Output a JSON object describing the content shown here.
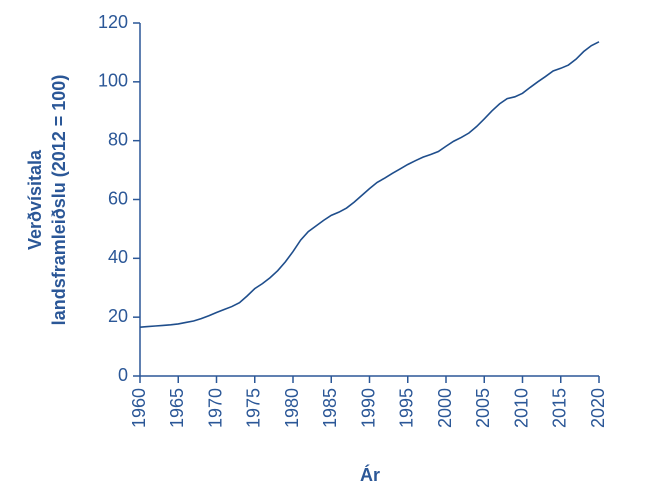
{
  "chart_data": {
    "type": "line",
    "ylabel": [
      "Verðvísitala",
      "landsframleiðslu (2012 = 100)"
    ],
    "xlabel": "Ár",
    "color": "#1f4e8c",
    "x": [
      1960,
      1961,
      1962,
      1963,
      1964,
      1965,
      1966,
      1967,
      1968,
      1969,
      1970,
      1971,
      1972,
      1973,
      1974,
      1975,
      1976,
      1977,
      1978,
      1979,
      1980,
      1981,
      1982,
      1983,
      1984,
      1985,
      1986,
      1987,
      1988,
      1989,
      1990,
      1991,
      1992,
      1993,
      1994,
      1995,
      1996,
      1997,
      1998,
      1999,
      2000,
      2001,
      2002,
      2003,
      2004,
      2005,
      2006,
      2007,
      2008,
      2009,
      2010,
      2011,
      2012,
      2013,
      2014,
      2015,
      2016,
      2017,
      2018,
      2019,
      2020
    ],
    "values": [
      16.6,
      16.8,
      17.0,
      17.2,
      17.4,
      17.7,
      18.2,
      18.7,
      19.5,
      20.5,
      21.6,
      22.6,
      23.6,
      24.9,
      27.2,
      29.7,
      31.4,
      33.4,
      35.8,
      38.8,
      42.3,
      46.2,
      49.1,
      51.0,
      52.9,
      54.6,
      55.7,
      57.1,
      59.1,
      61.4,
      63.7,
      65.8,
      67.3,
      68.9,
      70.4,
      71.9,
      73.2,
      74.4,
      75.3,
      76.3,
      78.1,
      79.8,
      81.1,
      82.6,
      84.8,
      87.4,
      90.1,
      92.5,
      94.3,
      94.9,
      96.1,
      98.1,
      100,
      101.8,
      103.7,
      104.6,
      105.7,
      107.7,
      110.3,
      112.3,
      113.6
    ],
    "xlim": [
      1960,
      2020
    ],
    "xticks": [
      1960,
      1965,
      1970,
      1975,
      1980,
      1985,
      1990,
      1995,
      2000,
      2005,
      2010,
      2015,
      2020
    ],
    "ylim": [
      0,
      120
    ],
    "yticks": [
      0,
      20,
      40,
      60,
      80,
      100,
      120
    ]
  }
}
